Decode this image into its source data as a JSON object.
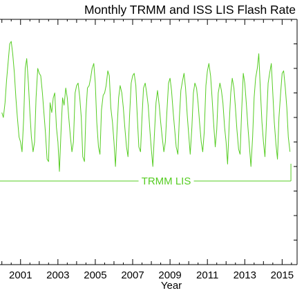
{
  "chart_data": {
    "type": "line",
    "title": "Monthly TRMM and ISS LIS Flash Rate",
    "xlabel": "Year",
    "ylabel": "",
    "x_tick_labels": [
      "2001",
      "2003",
      "2005",
      "2007",
      "2009",
      "2011",
      "2013",
      "2015"
    ],
    "x_tick_values": [
      2001,
      2003,
      2005,
      2007,
      2009,
      2011,
      2013,
      2015
    ],
    "xlim": [
      1999.9,
      2015.8
    ],
    "ylim": [
      0,
      1
    ],
    "grid": false,
    "annotation": {
      "text": "TRMM LIS",
      "x_start": 1999.9,
      "x_end": 2015.47
    },
    "series_color": "#55cc22",
    "series": [
      {
        "x": [
          2000.0,
          2000.08,
          2000.17,
          2000.25,
          2000.33,
          2000.42,
          2000.5,
          2000.58,
          2000.67,
          2000.75,
          2000.83,
          2000.92,
          2001.0,
          2001.08,
          2001.17,
          2001.25,
          2001.33,
          2001.42,
          2001.5,
          2001.58,
          2001.67,
          2001.75,
          2001.83,
          2001.92,
          2002.0,
          2002.08,
          2002.17,
          2002.25,
          2002.33,
          2002.42,
          2002.5,
          2002.58,
          2002.67,
          2002.75,
          2002.83,
          2002.92,
          2003.0,
          2003.08,
          2003.17,
          2003.25,
          2003.33,
          2003.42,
          2003.5,
          2003.58,
          2003.67,
          2003.75,
          2003.83,
          2003.92,
          2004.0,
          2004.08,
          2004.17,
          2004.25,
          2004.33,
          2004.42,
          2004.5,
          2004.58,
          2004.67,
          2004.75,
          2004.83,
          2004.92,
          2005.0,
          2005.08,
          2005.17,
          2005.25,
          2005.33,
          2005.42,
          2005.5,
          2005.58,
          2005.67,
          2005.75,
          2005.83,
          2005.92,
          2006.0,
          2006.08,
          2006.17,
          2006.25,
          2006.33,
          2006.42,
          2006.5,
          2006.58,
          2006.67,
          2006.75,
          2006.83,
          2006.92,
          2007.0,
          2007.08,
          2007.17,
          2007.25,
          2007.33,
          2007.42,
          2007.5,
          2007.58,
          2007.67,
          2007.75,
          2007.83,
          2007.92,
          2008.0,
          2008.08,
          2008.17,
          2008.25,
          2008.33,
          2008.42,
          2008.5,
          2008.58,
          2008.67,
          2008.75,
          2008.83,
          2008.92,
          2009.0,
          2009.08,
          2009.17,
          2009.25,
          2009.33,
          2009.42,
          2009.5,
          2009.58,
          2009.67,
          2009.75,
          2009.83,
          2009.92,
          2010.0,
          2010.08,
          2010.17,
          2010.25,
          2010.33,
          2010.42,
          2010.5,
          2010.58,
          2010.67,
          2010.75,
          2010.83,
          2010.92,
          2011.0,
          2011.08,
          2011.17,
          2011.25,
          2011.33,
          2011.42,
          2011.5,
          2011.58,
          2011.67,
          2011.75,
          2011.83,
          2011.92,
          2012.0,
          2012.08,
          2012.17,
          2012.25,
          2012.33,
          2012.42,
          2012.5,
          2012.58,
          2012.67,
          2012.75,
          2012.83,
          2012.92,
          2013.0,
          2013.08,
          2013.17,
          2013.25,
          2013.33,
          2013.42,
          2013.5,
          2013.58,
          2013.67,
          2013.75,
          2013.83,
          2013.92,
          2014.0,
          2014.08,
          2014.17,
          2014.25,
          2014.33,
          2014.42,
          2014.5,
          2014.58,
          2014.67,
          2014.75,
          2014.83,
          2014.92,
          2015.0,
          2015.08,
          2015.17,
          2015.25,
          2015.33,
          2015.42
        ],
        "values": [
          0.62,
          0.6,
          0.66,
          0.75,
          0.82,
          0.9,
          0.91,
          0.86,
          0.78,
          0.68,
          0.6,
          0.52,
          0.5,
          0.46,
          0.6,
          0.8,
          0.84,
          0.74,
          0.62,
          0.52,
          0.46,
          0.5,
          0.68,
          0.8,
          0.78,
          0.77,
          0.7,
          0.62,
          0.54,
          0.43,
          0.42,
          0.66,
          0.62,
          0.68,
          0.7,
          0.56,
          0.5,
          0.38,
          0.55,
          0.68,
          0.65,
          0.72,
          0.68,
          0.6,
          0.52,
          0.46,
          0.5,
          0.7,
          0.73,
          0.74,
          0.68,
          0.6,
          0.44,
          0.42,
          0.62,
          0.72,
          0.73,
          0.76,
          0.8,
          0.82,
          0.74,
          0.58,
          0.48,
          0.45,
          0.63,
          0.69,
          0.7,
          0.73,
          0.79,
          0.77,
          0.64,
          0.58,
          0.5,
          0.4,
          0.56,
          0.68,
          0.73,
          0.7,
          0.64,
          0.56,
          0.48,
          0.44,
          0.6,
          0.74,
          0.77,
          0.78,
          0.73,
          0.6,
          0.48,
          0.46,
          0.6,
          0.72,
          0.74,
          0.7,
          0.65,
          0.55,
          0.47,
          0.4,
          0.54,
          0.66,
          0.71,
          0.65,
          0.58,
          0.52,
          0.46,
          0.5,
          0.62,
          0.74,
          0.76,
          0.71,
          0.62,
          0.55,
          0.48,
          0.45,
          0.6,
          0.71,
          0.75,
          0.78,
          0.72,
          0.61,
          0.53,
          0.45,
          0.56,
          0.7,
          0.74,
          0.72,
          0.66,
          0.58,
          0.5,
          0.46,
          0.54,
          0.73,
          0.79,
          0.82,
          0.77,
          0.68,
          0.58,
          0.48,
          0.55,
          0.7,
          0.74,
          0.71,
          0.66,
          0.56,
          0.5,
          0.41,
          0.58,
          0.7,
          0.76,
          0.72,
          0.64,
          0.55,
          0.47,
          0.45,
          0.62,
          0.78,
          0.74,
          0.66,
          0.56,
          0.48,
          0.4,
          0.52,
          0.68,
          0.76,
          0.8,
          0.86,
          0.72,
          0.58,
          0.5,
          0.44,
          0.6,
          0.74,
          0.78,
          0.82,
          0.7,
          0.58,
          0.49,
          0.43,
          0.6,
          0.7,
          0.78,
          0.79,
          0.72,
          0.64,
          0.52,
          0.46
        ]
      }
    ]
  }
}
